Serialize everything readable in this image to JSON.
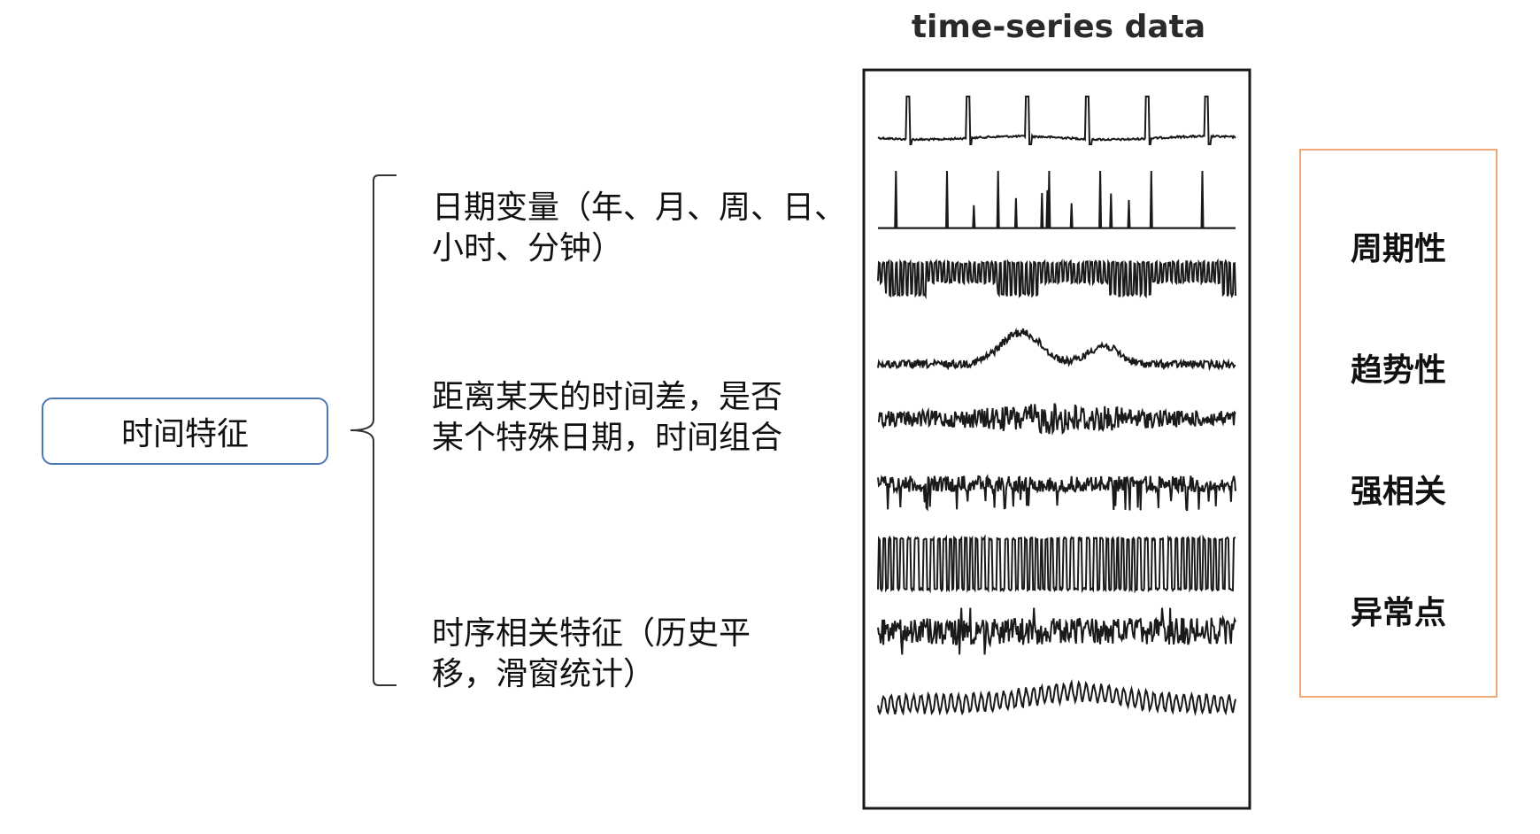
{
  "root": {
    "label": "时间特征"
  },
  "branches": [
    {
      "text": "日期变量（年、月、周、日、\n小时、分钟）"
    },
    {
      "text": "距离某天的时间差，是否\n某个特殊日期，时间组合"
    },
    {
      "text": "时序相关特征（历史平\n移，滑窗统计）"
    }
  ],
  "timeseries": {
    "title": "time-series data",
    "kinds": [
      "ecg-spikes",
      "sparse-spikes",
      "square-oscillation",
      "trend-bump",
      "dense-noise",
      "dip-noise",
      "bistable-square",
      "random-noise",
      "sine-wave"
    ]
  },
  "properties": [
    {
      "label": "周期性"
    },
    {
      "label": "趋势性"
    },
    {
      "label": "强相关"
    },
    {
      "label": "异常点"
    }
  ],
  "colors": {
    "root_border": "#4a78b8",
    "prop_border": "#f0a878",
    "line": "#1a1a1a"
  }
}
